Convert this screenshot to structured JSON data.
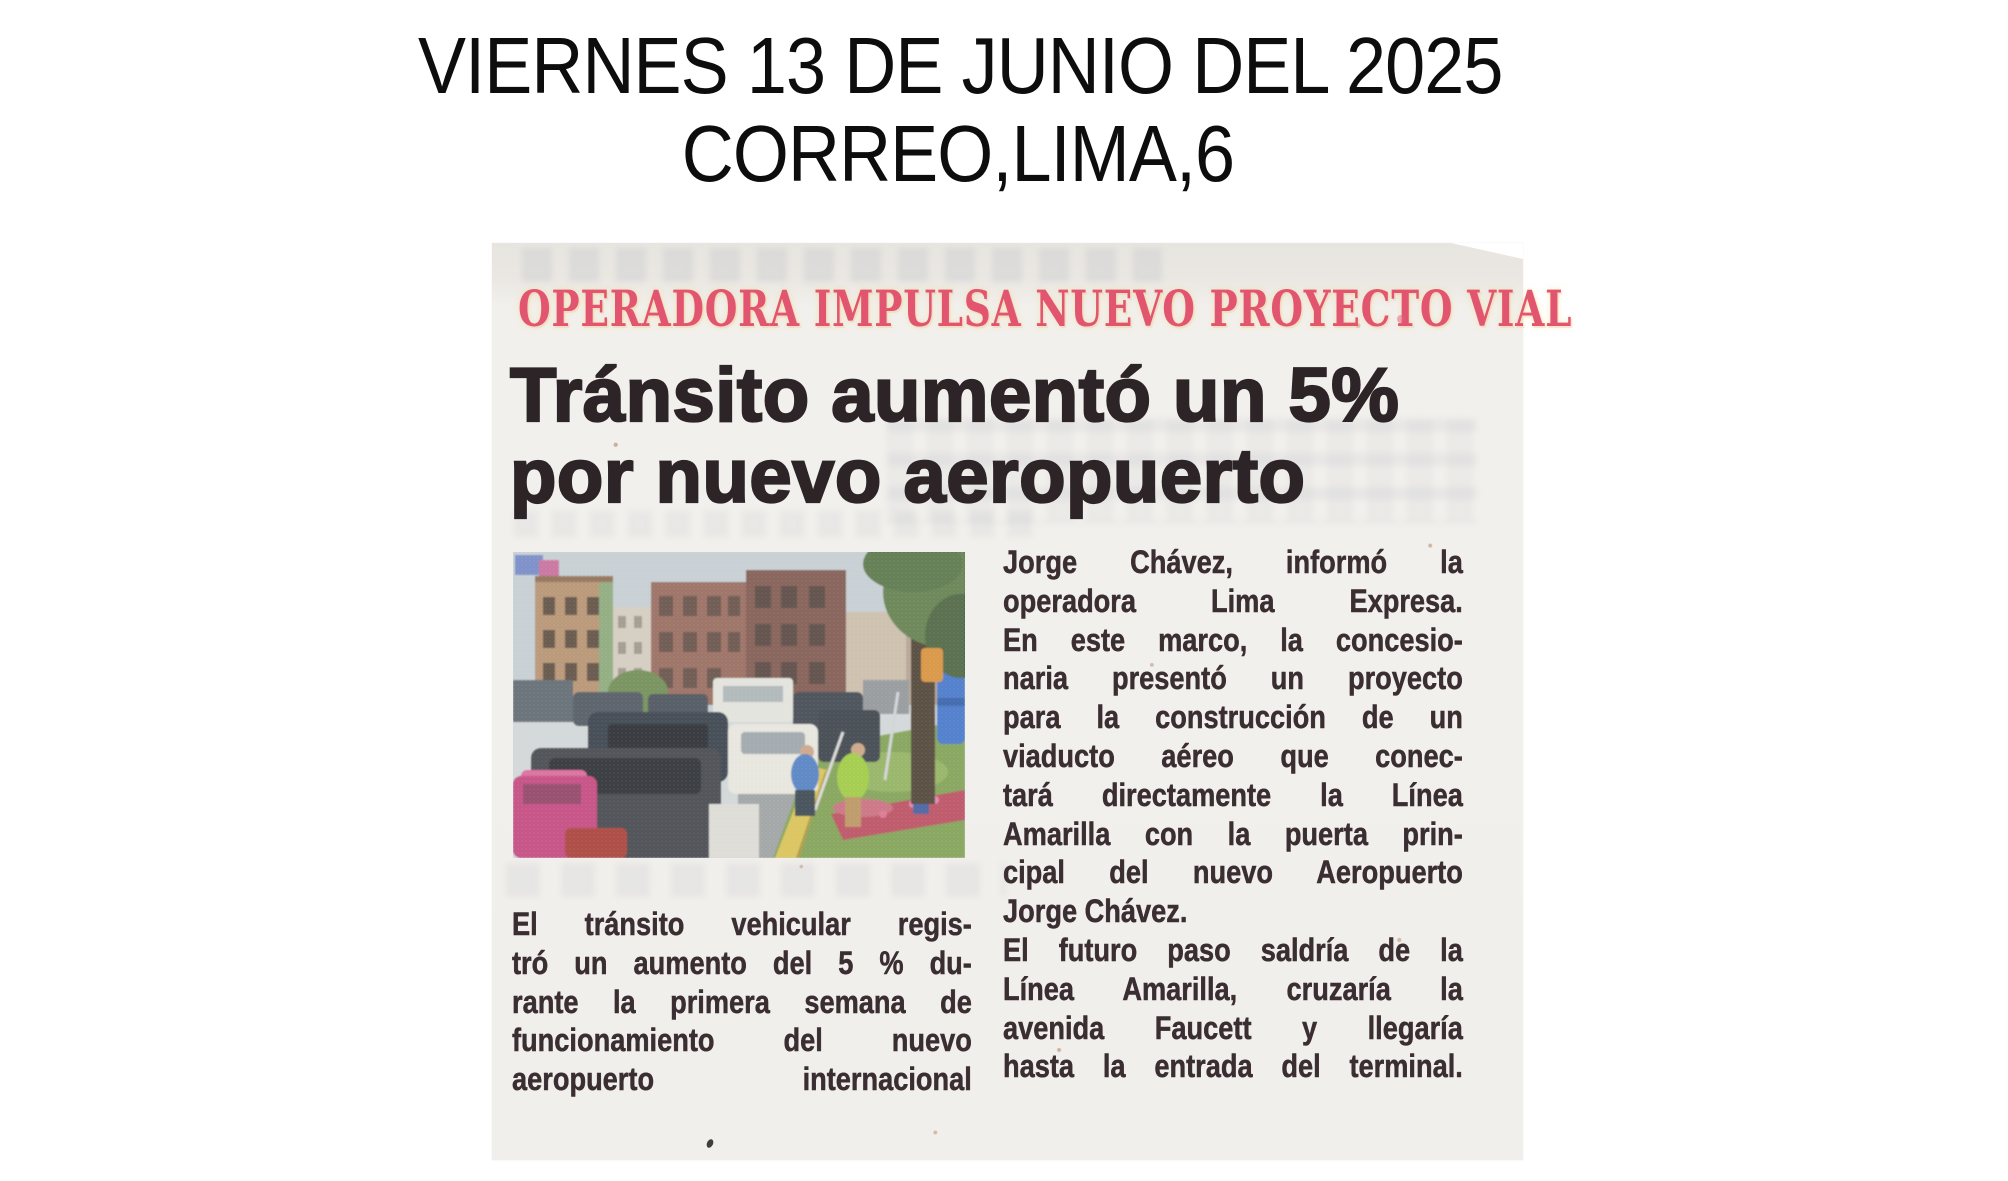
{
  "header": {
    "line1": "VIERNES 13 DE JUNIO DEL 2025",
    "line2": "CORREO,LIMA,6"
  },
  "article": {
    "kicker": "OPERADORA IMPULSA NUEVO PROYECTO VIAL",
    "headline_line1": "Tránsito aumentó un 5%",
    "headline_line2": "por nuevo aeropuerto",
    "photo": {
      "description": "Congested lanes of vehicles beside a median where workers in green and blue vests tend plants, buildings and a tree in the background"
    },
    "columns": {
      "left_lines": [
        {
          "text": "El tránsito vehicular regis-",
          "full": true
        },
        {
          "text": "tró un aumento del 5 % du-",
          "full": true
        },
        {
          "text": "rante la primera semana de",
          "full": true
        },
        {
          "text": "funcionamiento del nuevo",
          "full": true
        },
        {
          "text": "aeropuerto internacional",
          "full": true
        }
      ],
      "right_lines": [
        {
          "text": "Jorge Chávez, informó la",
          "full": true
        },
        {
          "text": "operadora Lima Expresa.",
          "full": true
        },
        {
          "text": "En este marco, la concesio-",
          "full": true
        },
        {
          "text": "naria presentó un proyecto",
          "full": true
        },
        {
          "text": "para la construcción de un",
          "full": true
        },
        {
          "text": "viaducto aéreo que conec-",
          "full": true
        },
        {
          "text": "tará directamente la Línea",
          "full": true
        },
        {
          "text": "Amarilla con la puerta prin-",
          "full": true
        },
        {
          "text": "cipal del nuevo Aeropuerto",
          "full": true
        },
        {
          "text": "Jorge Chávez.",
          "full": false
        },
        {
          "text": "El futuro paso saldría de la",
          "full": true
        },
        {
          "text": "Línea Amarilla, cruzaría la",
          "full": true
        },
        {
          "text": "avenida Faucett y llegaría",
          "full": true
        },
        {
          "text": "hasta la entrada del terminal.",
          "full": true
        }
      ]
    }
  },
  "colors": {
    "kicker": "#e25570",
    "headline": "#2d2428",
    "body_text": "#3a2e32",
    "paper": "#f1efeb",
    "scan_header_text": "#0d0d0d"
  }
}
